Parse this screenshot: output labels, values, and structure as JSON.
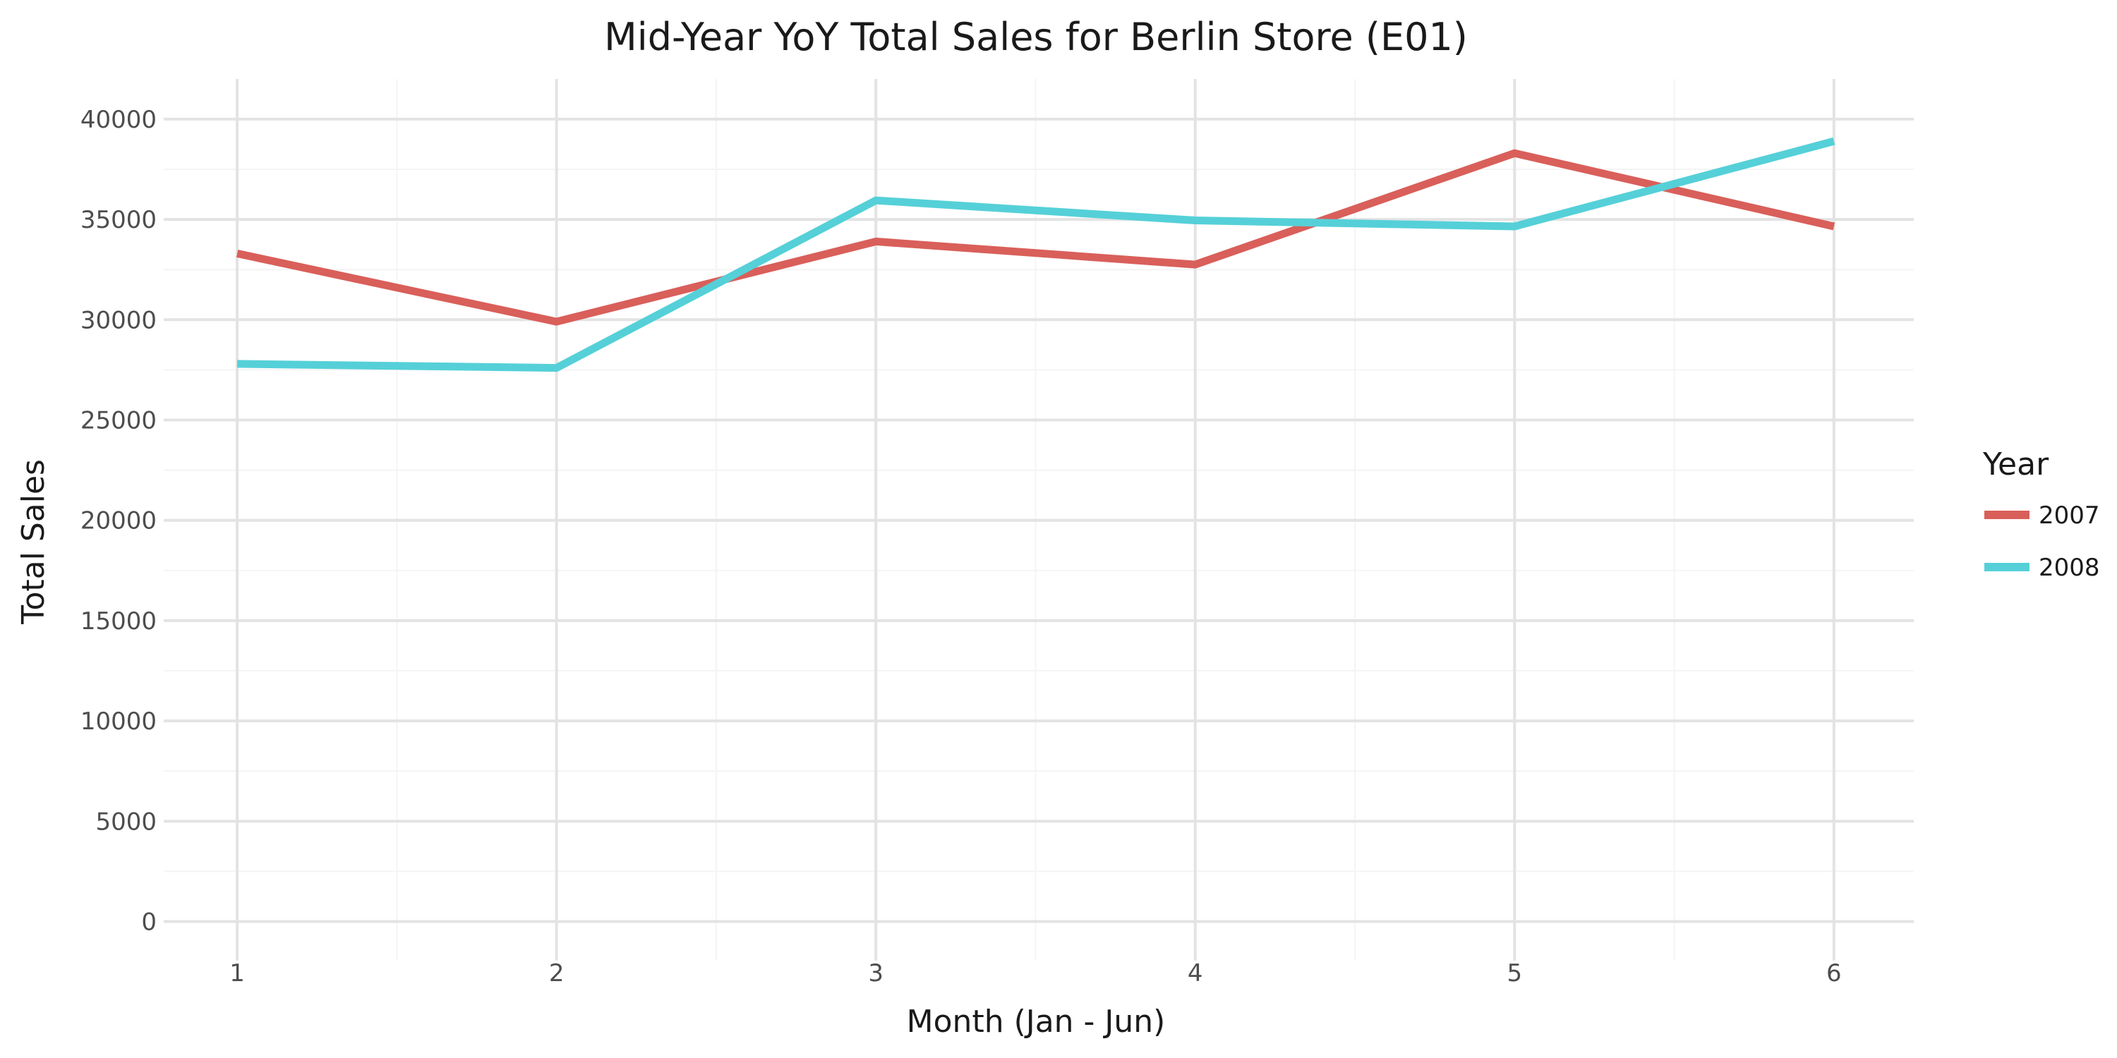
{
  "chart_data": {
    "type": "line",
    "title": "Mid-Year YoY Total Sales for Berlin Store (E01)",
    "xlabel": "Month (Jan - Jun)",
    "ylabel": "Total Sales",
    "x": [
      1,
      2,
      3,
      4,
      5,
      6
    ],
    "x_ticks": [
      "1",
      "2",
      "3",
      "4",
      "5",
      "6"
    ],
    "xlim": [
      0.77,
      6.25
    ],
    "y_ticks": [
      "0",
      "5000",
      "10000",
      "15000",
      "20000",
      "25000",
      "30000",
      "35000",
      "40000"
    ],
    "ylim": [
      -1950,
      42000
    ],
    "grid": true,
    "legend_title": "Year",
    "legend_position": "right",
    "series": [
      {
        "name": "2007",
        "color": "#d95f5a",
        "values": [
          33300,
          29900,
          33900,
          32750,
          38300,
          34650
        ]
      },
      {
        "name": "2008",
        "color": "#55d0d8",
        "values": [
          27800,
          27600,
          35950,
          34950,
          34650,
          38900
        ]
      }
    ]
  }
}
